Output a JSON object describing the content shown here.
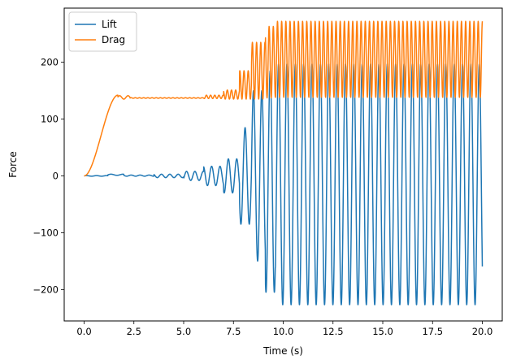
{
  "chart_data": {
    "type": "line",
    "title": "",
    "xlabel": "Time (s)",
    "ylabel": "Force",
    "xlim": [
      -1.0,
      21.0
    ],
    "ylim": [
      -255,
      295
    ],
    "xticks": [
      0.0,
      2.5,
      5.0,
      7.5,
      10.0,
      12.5,
      15.0,
      17.5,
      20.0
    ],
    "xtick_labels": [
      "0.0",
      "2.5",
      "5.0",
      "7.5",
      "10.0",
      "12.5",
      "15.0",
      "17.5",
      "20.0"
    ],
    "yticks": [
      -200,
      -100,
      0,
      100,
      200
    ],
    "ytick_labels": [
      "−200",
      "−100",
      "0",
      "100",
      "200"
    ],
    "grid": false,
    "legend_position": "top-left",
    "series": [
      {
        "name": "Lift",
        "color": "#1f77b4",
        "segments": [
          {
            "start": 0.0,
            "end": 1.2,
            "mean": 0.0,
            "amplitude": 0.5,
            "period": 0.5
          },
          {
            "start": 1.2,
            "end": 2.0,
            "mean": 2.0,
            "amplitude": 1.0,
            "period": 0.6
          },
          {
            "start": 2.0,
            "end": 3.5,
            "mean": 0.5,
            "amplitude": 1.0,
            "period": 0.45
          },
          {
            "start": 3.5,
            "end": 5.0,
            "mean": 0.0,
            "amplitude": 3.0,
            "period": 0.42
          },
          {
            "start": 5.0,
            "end": 6.0,
            "mean": 0.0,
            "amplitude": 8.0,
            "period": 0.42
          },
          {
            "start": 6.0,
            "end": 7.0,
            "mean": 0.0,
            "amplitude": 17.0,
            "period": 0.42
          },
          {
            "start": 7.0,
            "end": 7.8,
            "mean": 0.0,
            "amplitude": 30.0,
            "period": 0.42
          },
          {
            "start": 7.8,
            "end": 8.4,
            "mean": 0.0,
            "amplitude": 85.0,
            "period": 0.42
          },
          {
            "start": 8.4,
            "end": 9.1,
            "mean": 0.0,
            "amplitude": 150.0,
            "period": 0.42
          },
          {
            "start": 9.1,
            "end": 9.6,
            "mean": -10.0,
            "amplitude": 195.0,
            "period": 0.42
          },
          {
            "start": 9.6,
            "end": 20.0,
            "mean": -15.0,
            "amplitude": 212.0,
            "period": 0.42
          }
        ]
      },
      {
        "name": "Drag",
        "color": "#ff7f0e",
        "segments": [
          {
            "start": 0.0,
            "end": 1.7,
            "mean": 142.0,
            "amplitude": 0.0,
            "period": 0.42,
            "ramp_from": 0.0
          },
          {
            "start": 1.7,
            "end": 2.3,
            "mean": 138.0,
            "amplitude": 3.0,
            "period": 0.42
          },
          {
            "start": 2.3,
            "end": 6.0,
            "mean": 137.0,
            "amplitude": 0.5,
            "period": 0.21
          },
          {
            "start": 6.0,
            "end": 7.0,
            "mean": 139.0,
            "amplitude": 3.0,
            "period": 0.21
          },
          {
            "start": 7.0,
            "end": 7.8,
            "mean": 143.0,
            "amplitude": 8.0,
            "period": 0.21
          },
          {
            "start": 7.8,
            "end": 8.4,
            "mean": 160.0,
            "amplitude": 25.0,
            "period": 0.21
          },
          {
            "start": 8.4,
            "end": 9.1,
            "mean": 185.0,
            "amplitude": 50.0,
            "period": 0.21
          },
          {
            "start": 9.1,
            "end": 9.6,
            "mean": 200.0,
            "amplitude": 63.0,
            "period": 0.21
          },
          {
            "start": 9.6,
            "end": 20.0,
            "mean": 205.0,
            "amplitude": 67.0,
            "period": 0.21
          }
        ]
      }
    ]
  }
}
